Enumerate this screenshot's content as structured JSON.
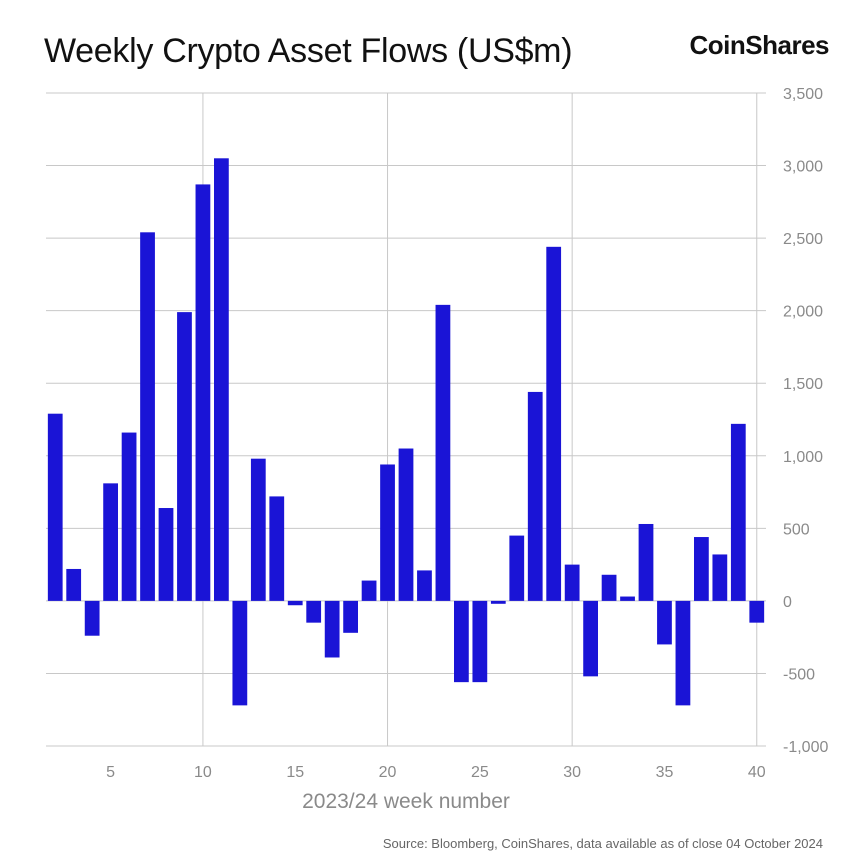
{
  "title": "Weekly Crypto Asset Flows (US$m)",
  "brand": "CoinShares",
  "source": "Source: Bloomberg, CoinShares, data available as of close 04 October 2024",
  "chart_data": {
    "type": "bar",
    "title": "Weekly Crypto Asset Flows (US$m)",
    "xlabel": "2023/24 week number",
    "ylabel": "",
    "ylim": [
      -1000,
      3500
    ],
    "yticks": [
      3500,
      3000,
      2500,
      2000,
      1500,
      1000,
      500,
      0,
      -500,
      -1000
    ],
    "ytick_labels": [
      "3,500",
      "3,000",
      "2,500",
      "2,000",
      "1,500",
      "1,000",
      "500",
      "0",
      "-500",
      "-1,000"
    ],
    "xlim": [
      1.5,
      40.5
    ],
    "xticks": [
      5,
      10,
      15,
      20,
      25,
      30,
      35,
      40
    ],
    "xtick_labels": [
      "5",
      "10",
      "15",
      "20",
      "25",
      "30",
      "35",
      "40"
    ],
    "vgrid_at": [
      10,
      20,
      30,
      40
    ],
    "bar_color": "#1a14d6",
    "grid_color": "#c8c8c8",
    "categories": [
      2,
      3,
      4,
      5,
      6,
      7,
      8,
      9,
      10,
      11,
      12,
      13,
      14,
      15,
      16,
      17,
      18,
      19,
      20,
      21,
      22,
      23,
      24,
      25,
      26,
      27,
      28,
      29,
      30,
      31,
      32,
      33,
      34,
      35,
      36,
      37,
      38,
      39,
      40
    ],
    "values": [
      1290,
      220,
      -240,
      810,
      1160,
      2540,
      640,
      1990,
      2870,
      3050,
      -720,
      980,
      720,
      -30,
      -150,
      -390,
      -220,
      140,
      940,
      1050,
      210,
      2040,
      -560,
      -560,
      -20,
      450,
      1440,
      2440,
      250,
      -520,
      180,
      30,
      530,
      -300,
      -720,
      440,
      320,
      1220,
      -150
    ]
  }
}
